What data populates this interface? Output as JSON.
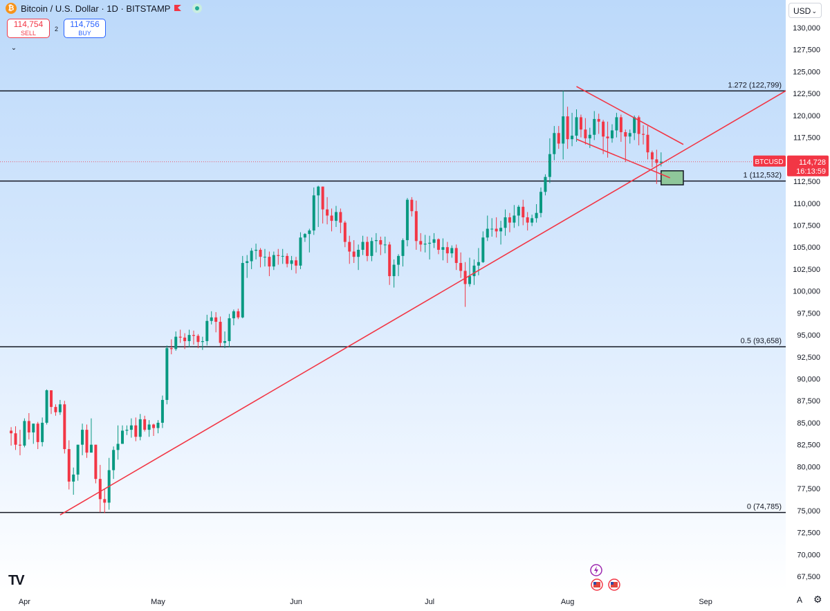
{
  "header": {
    "title": "Bitcoin / U.S. Dollar · 1D · BITSTAMP",
    "sell_price": "114,754",
    "sell_label": "SELL",
    "buy_price": "114,756",
    "buy_label": "BUY",
    "spread": "2"
  },
  "currency_selector": "USD",
  "price_tag": {
    "symbol": "BTCUSD",
    "price": "114,728",
    "countdown": "16:13:59",
    "value": 114728
  },
  "colors": {
    "up": "#089981",
    "down": "#f23645",
    "trendline": "#f23645",
    "level_line": "#131722",
    "zone_fill": "#8fc79a"
  },
  "fib_levels": [
    {
      "label": "1.272 (122,799)",
      "price": 122799
    },
    {
      "label": "1 (112,532)",
      "price": 112532
    },
    {
      "label": "0.5 (93,658)",
      "price": 93658
    },
    {
      "label": "0 (74,785)",
      "price": 74785
    }
  ],
  "price_ticks": [
    "130,000",
    "127,500",
    "125,000",
    "122,500",
    "120,000",
    "117,500",
    "115,000",
    "112,500",
    "110,000",
    "107,500",
    "105,000",
    "102,500",
    "100,000",
    "97,500",
    "95,000",
    "92,500",
    "90,000",
    "87,500",
    "85,000",
    "82,500",
    "80,000",
    "77,500",
    "75,000",
    "72,500",
    "70,000",
    "67,500"
  ],
  "time_ticks": [
    "Apr",
    "May",
    "Jun",
    "Jul",
    "Aug",
    "Sep"
  ],
  "icons": {
    "logo": "tradingview-logo",
    "events": [
      "lightning-event-icon",
      "us-flag-event-icon",
      "us-flag-event-icon"
    ]
  },
  "chart_data": {
    "type": "candlestick",
    "title": "Bitcoin / U.S. Dollar · 1D · BITSTAMP",
    "ylim": [
      66500,
      131000
    ],
    "y_ticks": [
      67500,
      70000,
      72500,
      75000,
      77500,
      80000,
      82500,
      85000,
      87500,
      90000,
      92500,
      95000,
      97500,
      100000,
      102500,
      105000,
      107500,
      110000,
      112500,
      115000,
      117500,
      120000,
      122500,
      125000,
      127500,
      130000
    ],
    "x_tick_labels": [
      "Apr",
      "May",
      "Jun",
      "Jul",
      "Aug",
      "Sep"
    ],
    "x_tick_days": [
      3,
      33,
      64,
      94,
      125,
      156
    ],
    "x_domain_days": [
      -2.5,
      174
    ],
    "x_day0": "2025-03-29",
    "closes": [
      83800,
      82500,
      82400,
      85200,
      83900,
      84900,
      82800,
      85000,
      88700,
      86800,
      86200,
      87100,
      82000,
      78300,
      79100,
      82500,
      84200,
      81600,
      82500,
      78600,
      76300,
      75900,
      79600,
      81900,
      82600,
      84100,
      84200,
      84700,
      83400,
      85400,
      84200,
      84800,
      84400,
      85000,
      87600,
      93500,
      93400,
      94800,
      94700,
      94300,
      95000,
      94900,
      94200,
      94300,
      96600,
      97000,
      96500,
      94100,
      94300,
      96900,
      97700,
      97000,
      103200,
      103400,
      104600,
      104700,
      103900,
      103900,
      102800,
      104100,
      104000,
      104000,
      103100,
      103500,
      102900,
      106100,
      106500,
      106900,
      110900,
      111900,
      109300,
      108600,
      108000,
      109000,
      107800,
      105600,
      104500,
      103900,
      104700,
      105600,
      104000,
      105700,
      105800,
      105300,
      105300,
      101700,
      103000,
      104000,
      105800,
      110400,
      109100,
      105700,
      105300,
      105400,
      105500,
      105900,
      104700,
      105000,
      104300,
      104900,
      103200,
      102300,
      100800,
      101700,
      102900,
      103300,
      106100,
      107100,
      107100,
      106800,
      107200,
      108400,
      107800,
      108600,
      109600,
      108400,
      107800,
      108300,
      108900,
      111300,
      113000,
      115600,
      118000,
      116800,
      119900,
      117300,
      117700,
      119800,
      118400,
      117400,
      117800,
      119600,
      119300,
      117600,
      117400,
      118300,
      119800,
      118100,
      117600,
      118000,
      119800,
      117900,
      117800,
      115800,
      115000,
      114600,
      114728
    ],
    "highs": [
      84500,
      84600,
      84200,
      85500,
      86100,
      84900,
      85100,
      85600,
      88800,
      88100,
      87100,
      87600,
      87500,
      83000,
      79900,
      82500,
      84900,
      84800,
      85500,
      82200,
      80200,
      77500,
      81000,
      82300,
      84700,
      84700,
      84700,
      85500,
      85600,
      86000,
      85800,
      85300,
      84900,
      85300,
      88100,
      93800,
      94500,
      95400,
      95600,
      95200,
      95600,
      95500,
      95100,
      94800,
      97300,
      97700,
      97600,
      97100,
      95400,
      97400,
      97900,
      98000,
      104000,
      104100,
      104900,
      105400,
      104900,
      104800,
      104500,
      104500,
      104800,
      104800,
      104300,
      104000,
      103900,
      106700,
      106600,
      107100,
      111800,
      112000,
      111800,
      110700,
      109400,
      109700,
      109400,
      108000,
      106300,
      105800,
      105300,
      106300,
      106200,
      106100,
      106600,
      106200,
      106200,
      105600,
      103600,
      104200,
      106000,
      110600,
      110700,
      110300,
      106600,
      106400,
      106300,
      106600,
      106000,
      106000,
      105600,
      105200,
      105300,
      104400,
      103300,
      103800,
      103600,
      104900,
      106800,
      108600,
      108300,
      108400,
      108000,
      109300,
      108900,
      109800,
      109800,
      110400,
      109000,
      108700,
      109900,
      111800,
      113300,
      117400,
      118800,
      118800,
      122800,
      121000,
      120300,
      120700,
      120100,
      119700,
      118600,
      120500,
      120200,
      119500,
      119300,
      119000,
      120300,
      120100,
      118400,
      118400,
      120000,
      120000,
      118900,
      118800,
      116000,
      116100,
      115800
    ],
    "lows": [
      82400,
      81900,
      81300,
      82200,
      83100,
      82600,
      82000,
      82300,
      84800,
      86000,
      85800,
      85900,
      81500,
      77400,
      76800,
      78400,
      81300,
      81000,
      81700,
      78100,
      74800,
      74700,
      75100,
      78600,
      80800,
      83000,
      83600,
      83300,
      82900,
      83000,
      84000,
      83400,
      83500,
      83800,
      84400,
      87100,
      92800,
      93200,
      94100,
      93400,
      93600,
      93900,
      93500,
      93300,
      93800,
      96200,
      95300,
      93700,
      93500,
      93600,
      96100,
      96800,
      96900,
      101500,
      102500,
      103600,
      102700,
      102800,
      101700,
      102400,
      103000,
      103100,
      102700,
      102400,
      102000,
      102500,
      105600,
      104400,
      106400,
      107300,
      107700,
      107600,
      106800,
      107300,
      106600,
      105000,
      103100,
      103200,
      102400,
      104100,
      103400,
      103400,
      104400,
      104100,
      104300,
      100700,
      100400,
      101700,
      102800,
      105100,
      108500,
      104700,
      104500,
      104400,
      103600,
      104900,
      104200,
      103500,
      103200,
      103800,
      102400,
      101500,
      98200,
      100500,
      100700,
      101800,
      103200,
      105700,
      106200,
      106100,
      105300,
      106300,
      106700,
      107200,
      107400,
      107500,
      106900,
      107400,
      107800,
      108400,
      110900,
      112300,
      114900,
      116200,
      115000,
      116200,
      116500,
      117000,
      117500,
      116700,
      116300,
      117200,
      117900,
      115600,
      115200,
      116900,
      117500,
      117000,
      114700,
      116800,
      117200,
      116600,
      116700,
      115000,
      114100,
      112200,
      114200
    ],
    "trendlines": [
      {
        "from_day": 11,
        "from_price": 74500,
        "to_day": 174,
        "to_price": 122800
      },
      {
        "from_day": 127,
        "from_price": 123300,
        "to_day": 151,
        "to_price": 116700
      },
      {
        "from_day": 127,
        "from_price": 117300,
        "to_day": 148,
        "to_price": 112900
      }
    ],
    "zone": {
      "from_day": 146,
      "to_day": 151,
      "price_low": 112100,
      "price_high": 113700
    },
    "last_price": 114728
  }
}
